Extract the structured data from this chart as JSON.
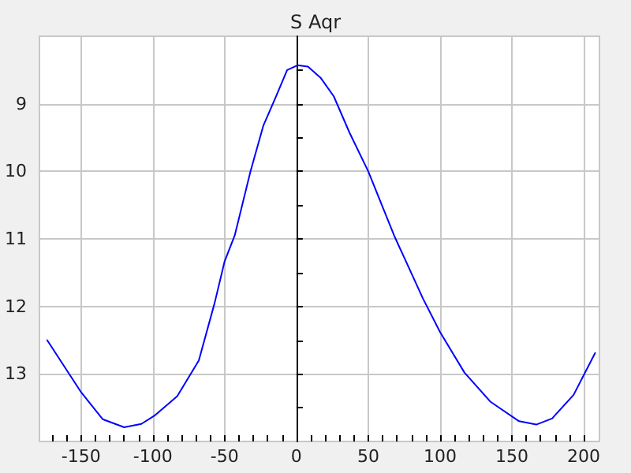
{
  "chart_data": {
    "type": "line",
    "title": "S Aqr",
    "x": [
      -173.6,
      -150,
      -135,
      -120,
      -108,
      -99,
      -83,
      -68,
      -57,
      -50,
      -43,
      -32,
      -23,
      -14,
      -6.5,
      0.7,
      8,
      17,
      26,
      37,
      50,
      68,
      88,
      100,
      117,
      135,
      155,
      167,
      178,
      193,
      208
    ],
    "series": [
      {
        "color": "#0000ff",
        "values": [
          12.5,
          13.27,
          13.67,
          13.79,
          13.74,
          13.62,
          13.33,
          12.8,
          11.95,
          11.33,
          10.95,
          10.0,
          9.32,
          8.88,
          8.5,
          8.43,
          8.45,
          8.62,
          8.89,
          9.43,
          10.0,
          10.95,
          11.88,
          12.38,
          12.98,
          13.41,
          13.7,
          13.75,
          13.66,
          13.31,
          12.69
        ]
      }
    ],
    "xlim": [
      -179,
      211
    ],
    "ylim": [
      14,
      8
    ],
    "xticks": [
      {
        "value": -170,
        "label": null
      },
      {
        "value": -160,
        "label": null
      },
      -150,
      {
        "value": -140,
        "label": null
      },
      {
        "value": -130,
        "label": null
      },
      {
        "value": -120,
        "label": null
      },
      {
        "value": -110,
        "label": null
      },
      -100,
      {
        "value": -90,
        "label": null
      },
      {
        "value": -80,
        "label": null
      },
      {
        "value": -70,
        "label": null
      },
      {
        "value": -60,
        "label": null
      },
      -50,
      {
        "value": -40,
        "label": null
      },
      {
        "value": -30,
        "label": null
      },
      {
        "value": -20,
        "label": null
      },
      {
        "value": -10,
        "label": null
      },
      0,
      {
        "value": 10,
        "label": null
      },
      {
        "value": 20,
        "label": null
      },
      {
        "value": 30,
        "label": null
      },
      {
        "value": 40,
        "label": null
      },
      50,
      {
        "value": 60,
        "label": null
      },
      {
        "value": 70,
        "label": null
      },
      {
        "value": 80,
        "label": null
      },
      {
        "value": 90,
        "label": null
      },
      100,
      {
        "value": 110,
        "label": null
      },
      {
        "value": 120,
        "label": null
      },
      {
        "value": 130,
        "label": null
      },
      {
        "value": 140,
        "label": null
      },
      150,
      {
        "value": 160,
        "label": null
      },
      {
        "value": 170,
        "label": null
      },
      {
        "value": 180,
        "label": null
      },
      {
        "value": 190,
        "label": null
      },
      200
    ],
    "yticks": [
      {
        "value": 8.5,
        "label": null
      },
      9,
      {
        "value": 9.5,
        "label": null
      },
      10,
      {
        "value": 10.5,
        "label": null
      },
      11,
      {
        "value": 11.5,
        "label": null
      },
      12,
      {
        "value": 12.5,
        "label": null
      },
      13,
      {
        "value": 13.5,
        "label": null
      }
    ],
    "grid": true,
    "marker": "none",
    "line_style": "solid"
  }
}
